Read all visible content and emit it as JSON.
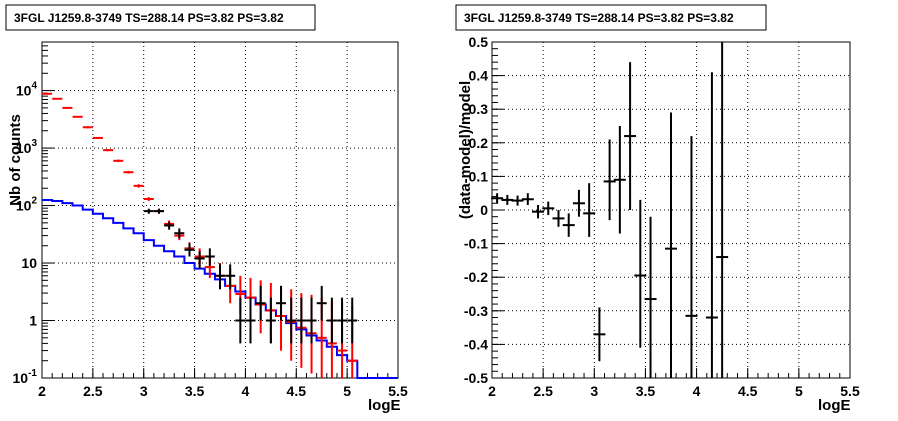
{
  "chart_data": [
    {
      "type": "step",
      "title": "3FGL J1259.8-3749 TS=288.14 PS=3.82 PS=3.82",
      "xlabel": "logE",
      "ylabel": "Nb of counts",
      "xlim": [
        2,
        5.5
      ],
      "ylim": [
        0.1,
        70000
      ],
      "yscale": "log",
      "grid": true,
      "xticks": [
        "2",
        "2.5",
        "3",
        "3.5",
        "4",
        "4.5",
        "5",
        "5.5"
      ],
      "yticks": [
        "10^-1",
        "1",
        "10",
        "10^2",
        "10^3",
        "10^4"
      ],
      "series": [
        {
          "color": "#0000ff",
          "style": "histogram",
          "bin_edges": [
            2.0,
            2.1,
            2.2,
            2.3,
            2.4,
            2.5,
            2.6,
            2.7,
            2.8,
            2.9,
            3.0,
            3.1,
            3.2,
            3.3,
            3.4,
            3.5,
            3.6,
            3.7,
            3.8,
            3.9,
            4.0,
            4.1,
            4.2,
            4.3,
            4.4,
            4.5,
            4.6,
            4.7,
            4.8,
            4.9,
            5.0,
            5.1,
            5.2,
            5.3,
            5.4,
            5.5
          ],
          "values": [
            125,
            120,
            110,
            100,
            85,
            72,
            60,
            50,
            40,
            33,
            25,
            20,
            16,
            13,
            10,
            8,
            6.5,
            5.2,
            4,
            3.2,
            2.5,
            1.9,
            1.5,
            1.2,
            0.9,
            0.7,
            0.55,
            0.45,
            0.35,
            0.25,
            0.2,
            0.1,
            0.1,
            0.1,
            0.1
          ]
        },
        {
          "color": "#ff0000",
          "style": "error-bars",
          "x": [
            2.05,
            2.15,
            2.25,
            2.35,
            2.45,
            2.55,
            2.65,
            2.75,
            2.85,
            2.95,
            3.05,
            3.15,
            3.25,
            3.35,
            3.45,
            3.55,
            3.65,
            3.75,
            3.85,
            3.95,
            4.05,
            4.15,
            4.25,
            4.35,
            4.45,
            4.55,
            4.65,
            4.75,
            4.85,
            4.95,
            5.05
          ],
          "y": [
            8800,
            7200,
            5000,
            3500,
            2300,
            1500,
            920,
            600,
            380,
            220,
            130,
            80,
            48,
            30,
            18,
            13,
            8.5,
            6,
            4,
            2.9,
            2.5,
            1.9,
            1.5,
            1.2,
            0.95,
            0.75,
            0.6,
            0.5,
            0.4,
            0.3,
            0.2
          ],
          "y_low": [
            8600,
            7000,
            4850,
            3400,
            2200,
            1450,
            880,
            570,
            360,
            205,
            120,
            72,
            42,
            25,
            14,
            9,
            5.5,
            3.5,
            2,
            1.3,
            1,
            0.6,
            0.4,
            0.3,
            0.2,
            0.15,
            0.12,
            0.1,
            0.1,
            0.1,
            0.1
          ],
          "y_high": [
            9000,
            7400,
            5150,
            3600,
            2400,
            1550,
            960,
            630,
            400,
            235,
            140,
            88,
            55,
            36,
            23,
            18,
            13,
            10,
            8,
            6,
            5.5,
            5,
            4.5,
            4,
            3.5,
            3,
            2.8,
            2.5,
            2.2,
            2,
            1.8
          ]
        },
        {
          "color": "#000000",
          "style": "error-bars",
          "x": [
            3.05,
            3.15,
            3.25,
            3.35,
            3.45,
            3.55,
            3.65,
            3.75,
            3.85,
            3.95,
            4.05,
            4.15,
            4.25,
            4.35,
            4.45,
            4.55,
            4.65,
            4.75,
            4.85,
            4.95,
            5.05
          ],
          "y": [
            80,
            80,
            45,
            33,
            17,
            12,
            13,
            6,
            6,
            1,
            1,
            2,
            1,
            2,
            1,
            1,
            1,
            2,
            1,
            1,
            1
          ],
          "y_low": [
            72,
            72,
            38,
            27,
            13,
            8,
            9,
            3.5,
            3.5,
            0.4,
            0.4,
            1,
            0.4,
            1,
            0.4,
            0.4,
            0.4,
            1,
            0.4,
            0.4,
            0.4
          ],
          "y_high": [
            88,
            88,
            52,
            40,
            22,
            16,
            18,
            9.5,
            9.5,
            2.5,
            2.5,
            4,
            2.5,
            4,
            2.5,
            2.5,
            2.5,
            4,
            2.5,
            2.5,
            2.5
          ]
        }
      ]
    },
    {
      "type": "scatter",
      "title": "3FGL J1259.8-3749 TS=288.14 PS=3.82 PS=3.82",
      "xlabel": "logE",
      "ylabel": "(data-model)/model",
      "xlim": [
        2,
        5.5
      ],
      "ylim": [
        -0.5,
        0.5
      ],
      "grid": true,
      "xticks": [
        "2",
        "2.5",
        "3",
        "3.5",
        "4",
        "4.5",
        "5",
        "5.5"
      ],
      "yticks": [
        "-0.5",
        "-0.4",
        "-0.3",
        "-0.2",
        "-0.1",
        "0",
        "0.1",
        "0.2",
        "0.3",
        "0.4",
        "0.5"
      ],
      "series": [
        {
          "color": "#000000",
          "style": "error-bars",
          "x": [
            2.05,
            2.15,
            2.25,
            2.35,
            2.45,
            2.55,
            2.65,
            2.75,
            2.85,
            2.95,
            3.05,
            3.15,
            3.25,
            3.35,
            3.45,
            3.55,
            3.75,
            3.95,
            4.15,
            4.25
          ],
          "y": [
            0.035,
            0.03,
            0.028,
            0.032,
            -0.005,
            0.005,
            -0.025,
            -0.045,
            0.02,
            -0.01,
            -0.37,
            0.085,
            0.09,
            0.22,
            -0.195,
            -0.265,
            -0.115,
            -0.315,
            -0.32,
            -0.14
          ],
          "y_low": [
            0.02,
            0.015,
            0.013,
            0.015,
            -0.025,
            -0.015,
            -0.05,
            -0.08,
            -0.02,
            -0.08,
            -0.45,
            -0.03,
            -0.07,
            0.0,
            -0.41,
            -0.5,
            -0.5,
            -0.5,
            -0.5,
            -0.5
          ],
          "y_high": [
            0.05,
            0.045,
            0.043,
            0.05,
            0.015,
            0.025,
            0.0,
            -0.01,
            0.06,
            0.08,
            -0.29,
            0.21,
            0.25,
            0.44,
            0.03,
            -0.02,
            0.29,
            0.22,
            0.41,
            0.5
          ]
        }
      ]
    }
  ]
}
